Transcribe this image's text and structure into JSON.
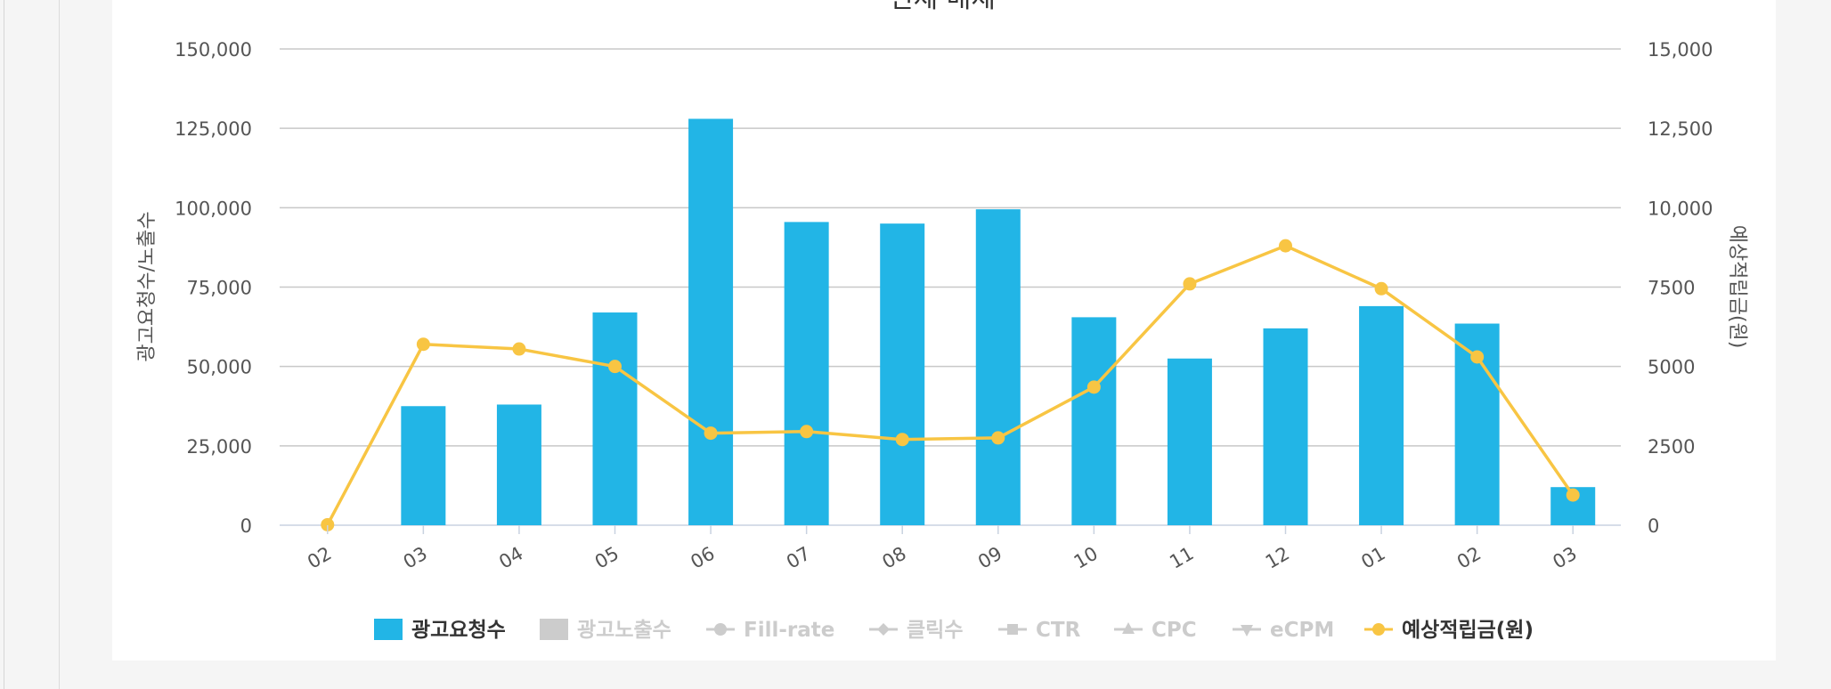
{
  "chart_data": {
    "type": "bar",
    "title": "전체 매체",
    "categories": [
      "02",
      "03",
      "04",
      "05",
      "06",
      "07",
      "08",
      "09",
      "10",
      "11",
      "12",
      "01",
      "02",
      "03"
    ],
    "series": [
      {
        "name": "광고요청수",
        "type": "bar",
        "axis": "left",
        "color": "#22b5e6",
        "values": [
          0,
          37500,
          38000,
          67000,
          128000,
          95500,
          95000,
          99500,
          65500,
          52500,
          62000,
          69000,
          63500,
          12000
        ]
      },
      {
        "name": "예상적립금(원)",
        "type": "line",
        "axis": "right",
        "color": "#f8c543",
        "values": [
          15,
          5700,
          5550,
          5000,
          2900,
          2950,
          2700,
          2750,
          4350,
          7600,
          8800,
          7450,
          5300,
          950
        ]
      }
    ],
    "left_axis": {
      "label": "광고요청수/노출수",
      "range": [
        0,
        150000
      ],
      "ticks": [
        "0",
        "25,000",
        "50,000",
        "75,000",
        "100,000",
        "125,000",
        "150,000"
      ]
    },
    "right_axis": {
      "label": "예상적립금(원)",
      "range": [
        0,
        15000
      ],
      "ticks": [
        "0",
        "2500",
        "5000",
        "7500",
        "10,000",
        "12,500",
        "15,000"
      ]
    },
    "grid": true,
    "legend_position": "bottom",
    "legend": [
      {
        "label": "광고요청수",
        "marker": "bar",
        "active": true,
        "color": "#22b5e6"
      },
      {
        "label": "광고노출수",
        "marker": "bar",
        "active": false,
        "color": "#cccccc"
      },
      {
        "label": "Fill-rate",
        "marker": "circle",
        "active": false,
        "color": "#cccccc"
      },
      {
        "label": "클릭수",
        "marker": "diamond",
        "active": false,
        "color": "#cccccc"
      },
      {
        "label": "CTR",
        "marker": "square",
        "active": false,
        "color": "#cccccc"
      },
      {
        "label": "CPC",
        "marker": "triangle",
        "active": false,
        "color": "#cccccc"
      },
      {
        "label": "eCPM",
        "marker": "triangle-down",
        "active": false,
        "color": "#cccccc"
      },
      {
        "label": "예상적립금(원)",
        "marker": "circle",
        "active": true,
        "color": "#f8c543"
      }
    ]
  }
}
